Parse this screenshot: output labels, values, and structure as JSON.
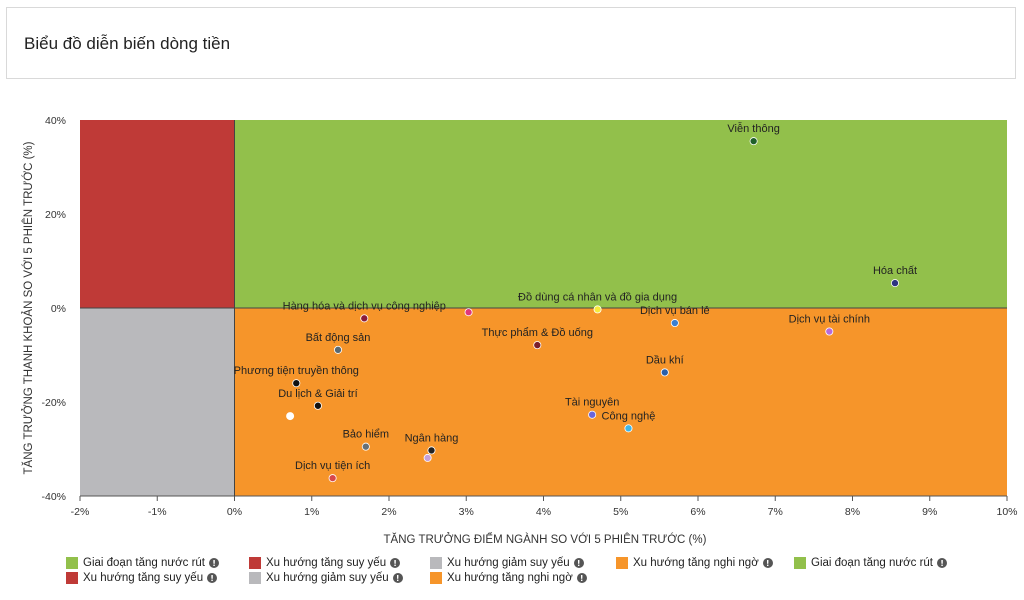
{
  "title": "Biểu đồ diễn biến dòng tiền",
  "colors": {
    "green": "#92c04b",
    "red": "#bf3a37",
    "gray": "#b9b9bc",
    "orange": "#f6952a"
  },
  "chart_data": {
    "type": "scatter",
    "xlabel": "TĂNG TRƯỞNG ĐIỂM NGÀNH SO VỚI 5 PHIÊN TRƯỚC (%)",
    "ylabel": "TĂNG TRƯỞNG THANH KHOẢN SO VỚI 5 PHIÊN TRƯỚC (%)",
    "xlim": [
      -2,
      10
    ],
    "ylim": [
      -40,
      40
    ],
    "x_ticks": [
      "-2%",
      "-1%",
      "0%",
      "1%",
      "2%",
      "3%",
      "4%",
      "5%",
      "6%",
      "7%",
      "8%",
      "9%",
      "10%"
    ],
    "y_ticks": [
      "40%",
      "20%",
      "0%",
      "-20%",
      "-40%"
    ],
    "quadrants": [
      {
        "label": "Giai đoạn tăng nước rút",
        "x_range": [
          0,
          10
        ],
        "y_range": [
          0,
          40
        ],
        "color": "#92c04b"
      },
      {
        "label": "Xu hướng tăng suy yếu",
        "x_range": [
          -2,
          0
        ],
        "y_range": [
          0,
          40
        ],
        "color": "#bf3a37"
      },
      {
        "label": "Xu hướng giảm suy yếu",
        "x_range": [
          -2,
          0
        ],
        "y_range": [
          -40,
          0
        ],
        "color": "#b9b9bc"
      },
      {
        "label": "Xu hướng tăng nghi ngờ",
        "x_range": [
          0,
          10
        ],
        "y_range": [
          -40,
          0
        ],
        "color": "#f6952a"
      }
    ],
    "points": [
      {
        "name": "Viễn thông",
        "x": 6.72,
        "y": 35.5,
        "color": "#1f5f2a"
      },
      {
        "name": "Hóa chất",
        "x": 8.55,
        "y": 5.3,
        "color": "#2d3580"
      },
      {
        "name": "Đồ dùng cá nhân và đồ gia dụng",
        "x": 4.7,
        "y": -0.3,
        "color": "#f7ea3b"
      },
      {
        "name": "Hàng hóa và dịch vụ công nghiệp",
        "x": 1.68,
        "y": -2.2,
        "color": "#8a1c3a"
      },
      {
        "name": "",
        "x": 3.03,
        "y": -0.9,
        "color": "#e0367a"
      },
      {
        "name": "Dịch vụ bán lẻ",
        "x": 5.7,
        "y": -3.2,
        "color": "#3a7fd0"
      },
      {
        "name": "Dịch vụ tài chính",
        "x": 7.7,
        "y": -5.0,
        "color": "#b66bd9"
      },
      {
        "name": "Thực phẩm & Đồ uống",
        "x": 3.92,
        "y": -7.9,
        "color": "#7a1f2c"
      },
      {
        "name": "Bất động sản",
        "x": 1.34,
        "y": -8.9,
        "color": "#596973"
      },
      {
        "name": "Dầu khí",
        "x": 5.57,
        "y": -13.7,
        "color": "#2a5fa8"
      },
      {
        "name": "Phương tiện truyền thông",
        "x": 0.8,
        "y": -16.0,
        "color": "#111111"
      },
      {
        "name": "Du lịch & Giải trí",
        "x": 1.08,
        "y": -20.8,
        "color": "#111111"
      },
      {
        "name": "",
        "x": 0.72,
        "y": -23.0,
        "color": "#ffffff"
      },
      {
        "name": "Tài nguyên",
        "x": 4.63,
        "y": -22.7,
        "color": "#6b65d9"
      },
      {
        "name": "Công nghệ",
        "x": 5.1,
        "y": -25.6,
        "color": "#3fb6e6"
      },
      {
        "name": "Bảo hiểm",
        "x": 1.7,
        "y": -29.5,
        "color": "#667076"
      },
      {
        "name": "Ngân hàng",
        "x": 2.55,
        "y": -30.3,
        "color": "#222222"
      },
      {
        "name": "",
        "x": 2.5,
        "y": -31.9,
        "color": "#c5a1da"
      },
      {
        "name": "Dịch vụ tiện ích",
        "x": 1.27,
        "y": -36.2,
        "color": "#d8484a"
      }
    ]
  },
  "legend": {
    "items": [
      {
        "label": "Giai đoạn tăng nước rút",
        "color": "#92c04b"
      },
      {
        "label": "Xu hướng tăng suy yếu",
        "color": "#bf3a37"
      },
      {
        "label": "Xu hướng giảm suy yếu",
        "color": "#b9b9bc"
      },
      {
        "label": "Xu hướng tăng nghi ngờ",
        "color": "#f6952a"
      },
      {
        "label": "Giai đoạn tăng nước rút",
        "color": "#92c04b"
      },
      {
        "label": "Xu hướng tăng suy yếu",
        "color": "#bf3a37"
      },
      {
        "label": "Xu hướng giảm suy yếu",
        "color": "#b9b9bc"
      },
      {
        "label": "Xu hướng tăng nghi ngờ",
        "color": "#f6952a"
      }
    ]
  }
}
